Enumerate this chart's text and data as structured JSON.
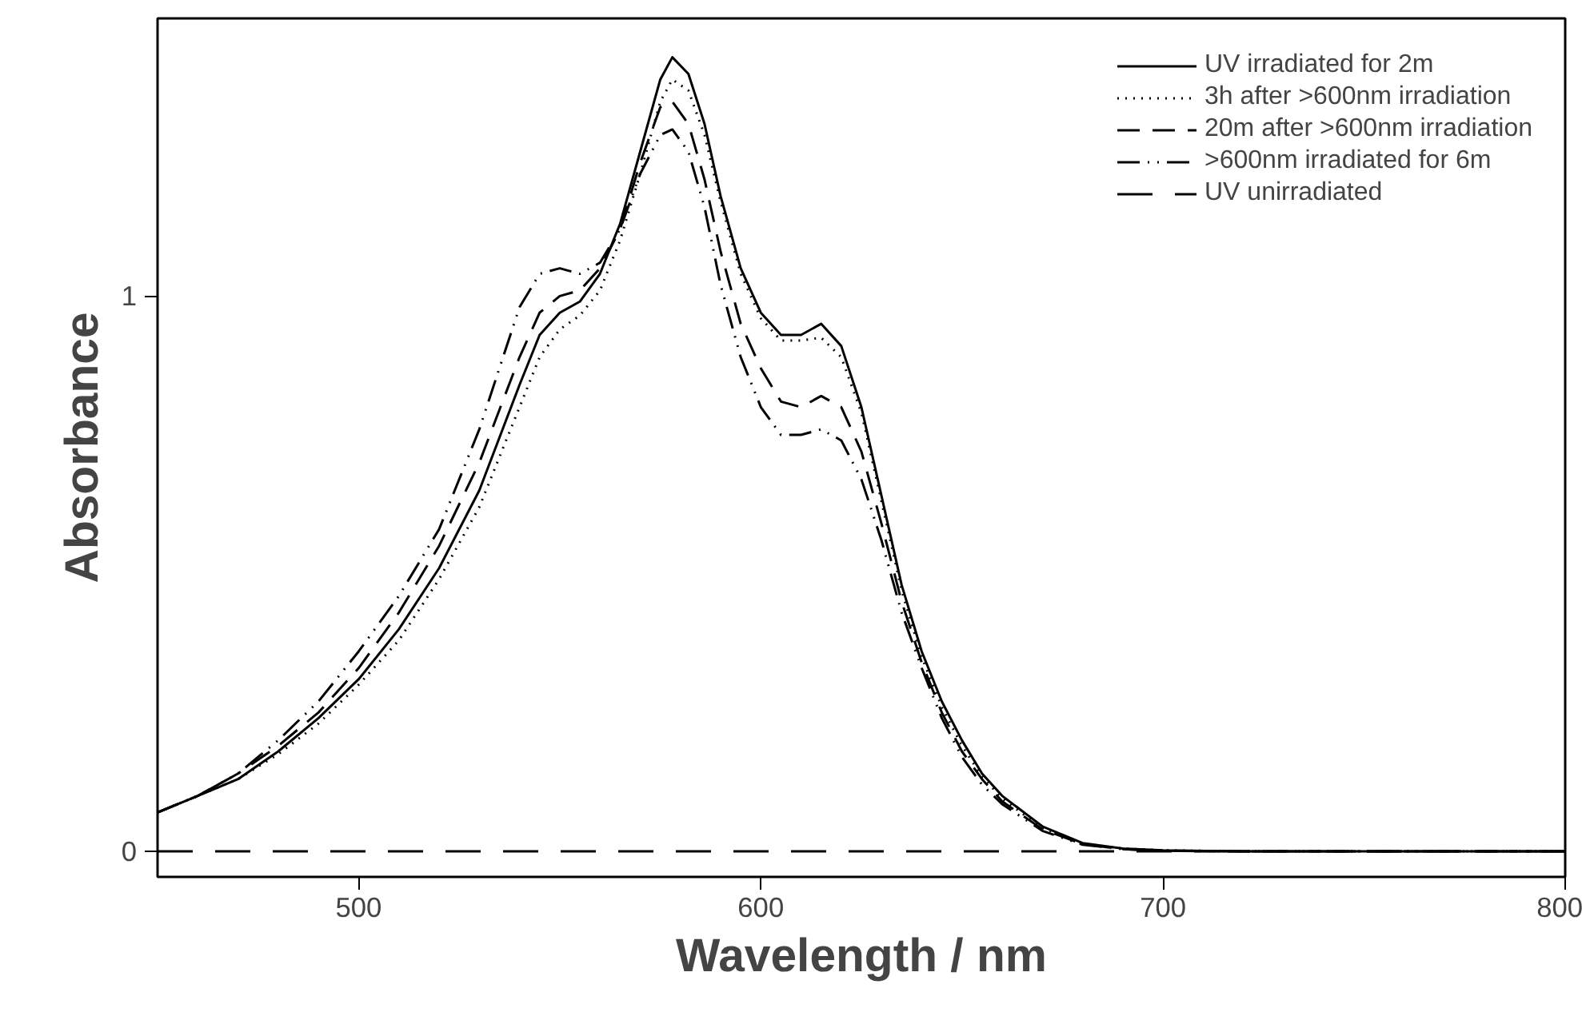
{
  "chart_data": {
    "type": "line",
    "xlabel": "Wavelength / nm",
    "ylabel": "Absorbance",
    "x": [
      450,
      460,
      470,
      480,
      490,
      500,
      510,
      520,
      530,
      540,
      545,
      550,
      555,
      560,
      565,
      570,
      575,
      578,
      582,
      586,
      590,
      595,
      600,
      605,
      610,
      615,
      620,
      625,
      630,
      635,
      640,
      645,
      650,
      655,
      660,
      670,
      680,
      690,
      700,
      720,
      750,
      800
    ],
    "xlim": [
      450,
      800
    ],
    "xticks": [
      500,
      600,
      700,
      800
    ],
    "ylim": [
      -0.046,
      1.5
    ],
    "yticks": [
      0,
      1
    ],
    "grid": false,
    "legend": "top right",
    "series": [
      {
        "name": "UV irradiated for 2m",
        "color": "#000000",
        "line_style": "solid",
        "values": [
          0.07,
          0.1,
          0.13,
          0.18,
          0.24,
          0.31,
          0.4,
          0.51,
          0.65,
          0.84,
          0.93,
          0.97,
          0.99,
          1.04,
          1.13,
          1.26,
          1.39,
          1.43,
          1.4,
          1.31,
          1.18,
          1.05,
          0.97,
          0.93,
          0.93,
          0.95,
          0.91,
          0.8,
          0.64,
          0.48,
          0.36,
          0.27,
          0.2,
          0.14,
          0.1,
          0.045,
          0.015,
          0.005,
          0.002,
          0,
          0,
          0
        ]
      },
      {
        "name": "3h after >600nm irradiation",
        "color": "#000000",
        "line_style": "dotted",
        "values": [
          0.07,
          0.1,
          0.13,
          0.175,
          0.23,
          0.3,
          0.38,
          0.49,
          0.62,
          0.8,
          0.89,
          0.94,
          0.965,
          1.01,
          1.1,
          1.22,
          1.35,
          1.39,
          1.37,
          1.29,
          1.17,
          1.04,
          0.96,
          0.92,
          0.92,
          0.925,
          0.89,
          0.79,
          0.63,
          0.47,
          0.35,
          0.26,
          0.19,
          0.135,
          0.095,
          0.042,
          0.014,
          0.005,
          0.002,
          0,
          0,
          0
        ]
      },
      {
        "name": "20m after >600nm irradiation",
        "color": "#000000",
        "line_style": "dashed",
        "values": [
          0.07,
          0.1,
          0.14,
          0.19,
          0.25,
          0.33,
          0.43,
          0.55,
          0.7,
          0.89,
          0.97,
          1.0,
          1.01,
          1.05,
          1.12,
          1.24,
          1.34,
          1.35,
          1.31,
          1.21,
          1.08,
          0.95,
          0.87,
          0.81,
          0.8,
          0.82,
          0.8,
          0.72,
          0.59,
          0.45,
          0.34,
          0.25,
          0.18,
          0.13,
          0.09,
          0.04,
          0.013,
          0.004,
          0.001,
          0,
          0,
          0
        ]
      },
      {
        "name": ">600nm irradiated for 6m",
        "color": "#000000",
        "line_style": "dashdotdot",
        "values": [
          0.07,
          0.1,
          0.14,
          0.2,
          0.27,
          0.36,
          0.46,
          0.58,
          0.76,
          0.98,
          1.04,
          1.05,
          1.04,
          1.06,
          1.12,
          1.22,
          1.29,
          1.3,
          1.26,
          1.16,
          1.02,
          0.89,
          0.8,
          0.75,
          0.75,
          0.76,
          0.74,
          0.67,
          0.56,
          0.43,
          0.33,
          0.24,
          0.17,
          0.12,
          0.085,
          0.037,
          0.012,
          0.004,
          0.001,
          0,
          0,
          0
        ]
      },
      {
        "name": "UV unirradiated",
        "color": "#000000",
        "line_style": "longdash",
        "x": [
          450,
          800
        ],
        "values": [
          0,
          0
        ]
      }
    ]
  }
}
